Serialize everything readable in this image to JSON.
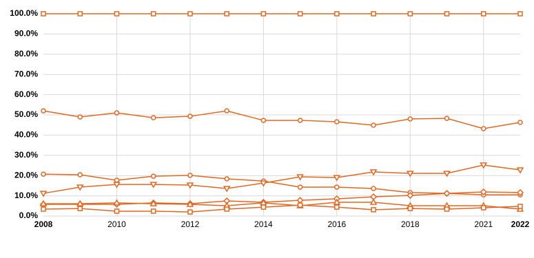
{
  "chart_data": {
    "type": "line",
    "categories": [
      "2008",
      null,
      "2010",
      null,
      "2012",
      null,
      "2014",
      null,
      "2016",
      null,
      "2018",
      null,
      "2021",
      "2022"
    ],
    "ylim": [
      0,
      100
    ],
    "yticks": [
      {
        "value": 0,
        "label": "0.0%"
      },
      {
        "value": 10,
        "label": "10.0%"
      },
      {
        "value": 20,
        "label": "20.0%"
      },
      {
        "value": 30,
        "label": "30.0%"
      },
      {
        "value": 40,
        "label": "40.0%"
      },
      {
        "value": 50,
        "label": "50.0%"
      },
      {
        "value": 60,
        "label": "60.0%"
      },
      {
        "value": 70,
        "label": "70.0%"
      },
      {
        "value": 80,
        "label": "80.0%"
      },
      {
        "value": 90,
        "label": "90.0%"
      },
      {
        "value": 100,
        "label": "100.0%"
      }
    ],
    "grid": true,
    "series": [
      {
        "marker": "square",
        "color": "#e2661f",
        "values": [
          100,
          100,
          100,
          100,
          100,
          100,
          100,
          100,
          100,
          100,
          100,
          100,
          100,
          100
        ]
      },
      {
        "marker": "circle",
        "color": "#e2661f",
        "values": [
          52.0,
          49.0,
          51.0,
          48.6,
          49.3,
          52.0,
          47.3,
          47.3,
          46.6,
          44.9,
          48.0,
          48.3,
          43.2,
          46.3
        ]
      },
      {
        "marker": "circle",
        "color": "#e2661f",
        "values": [
          20.7,
          20.4,
          17.7,
          19.7,
          20.1,
          18.4,
          17.3,
          14.3,
          14.3,
          13.6,
          11.6,
          11.2,
          10.5,
          10.5
        ]
      },
      {
        "marker": "triangle-down",
        "color": "#e2661f",
        "values": [
          11.2,
          14.3,
          15.6,
          15.6,
          15.3,
          13.6,
          16.3,
          19.4,
          19.0,
          21.8,
          21.1,
          21.1,
          25.2,
          22.8
        ]
      },
      {
        "marker": "diamond",
        "color": "#e2661f",
        "values": [
          5.8,
          5.8,
          5.8,
          6.5,
          6.1,
          7.5,
          6.8,
          7.8,
          8.5,
          9.5,
          10.2,
          11.2,
          11.9,
          11.6
        ]
      },
      {
        "marker": "triangle-up",
        "color": "#e2661f",
        "values": [
          6.1,
          6.1,
          6.5,
          6.1,
          5.8,
          5.1,
          6.5,
          5.1,
          6.8,
          6.8,
          5.1,
          5.1,
          5.1,
          3.4
        ]
      },
      {
        "marker": "square",
        "color": "#e2661f",
        "values": [
          3.4,
          3.7,
          2.4,
          2.4,
          2.0,
          3.4,
          4.4,
          5.4,
          4.4,
          3.1,
          3.7,
          3.4,
          4.1,
          4.8
        ]
      }
    ]
  }
}
